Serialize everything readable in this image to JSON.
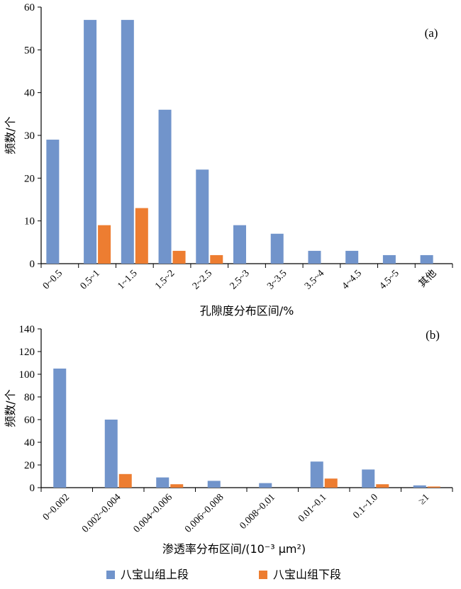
{
  "chart_data": [
    {
      "type": "bar",
      "panel_label": "(a)",
      "xlabel": "孔隙度分布区间/%",
      "ylabel": "频数/个",
      "ylim": [
        0,
        60
      ],
      "yticks": [
        0,
        10,
        20,
        30,
        40,
        50,
        60
      ],
      "categories": [
        "0~0.5",
        "0.5~1",
        "1~1.5",
        "1.5~2",
        "2~2.5",
        "2.5~3",
        "3~3.5",
        "3.5~4",
        "4~4.5",
        "4.5~5",
        "其他"
      ],
      "series": [
        {
          "name": "八宝山组上段",
          "color": "#7194cb",
          "values": [
            29,
            57,
            57,
            36,
            22,
            9,
            7,
            3,
            3,
            2,
            2
          ]
        },
        {
          "name": "八宝山组下段",
          "color": "#ed7d31",
          "values": [
            0,
            9,
            13,
            3,
            2,
            0,
            0,
            0,
            0,
            0,
            0
          ]
        }
      ]
    },
    {
      "type": "bar",
      "panel_label": "(b)",
      "xlabel": "渗透率分布区间/(10⁻³ μm²)",
      "ylabel": "频数/个",
      "ylim": [
        0,
        140
      ],
      "yticks": [
        0,
        20,
        40,
        60,
        80,
        100,
        120,
        140
      ],
      "categories": [
        "0~0.002",
        "0.002~0.004",
        "0.004~0.006",
        "0.006~0.008",
        "0.008~0.01",
        "0.01~0.1",
        "0.1~1.0",
        "≥1"
      ],
      "series": [
        {
          "name": "八宝山组上段",
          "color": "#7194cb",
          "values": [
            105,
            60,
            9,
            6,
            4,
            23,
            16,
            2
          ]
        },
        {
          "name": "八宝山组下段",
          "color": "#ed7d31",
          "values": [
            0,
            12,
            3,
            0,
            0,
            8,
            3,
            1
          ]
        }
      ]
    }
  ],
  "legend": {
    "placement": "bottom",
    "items": [
      {
        "label": "八宝山组上段",
        "color": "#7194cb"
      },
      {
        "label": "八宝山组下段",
        "color": "#ed7d31"
      }
    ]
  }
}
